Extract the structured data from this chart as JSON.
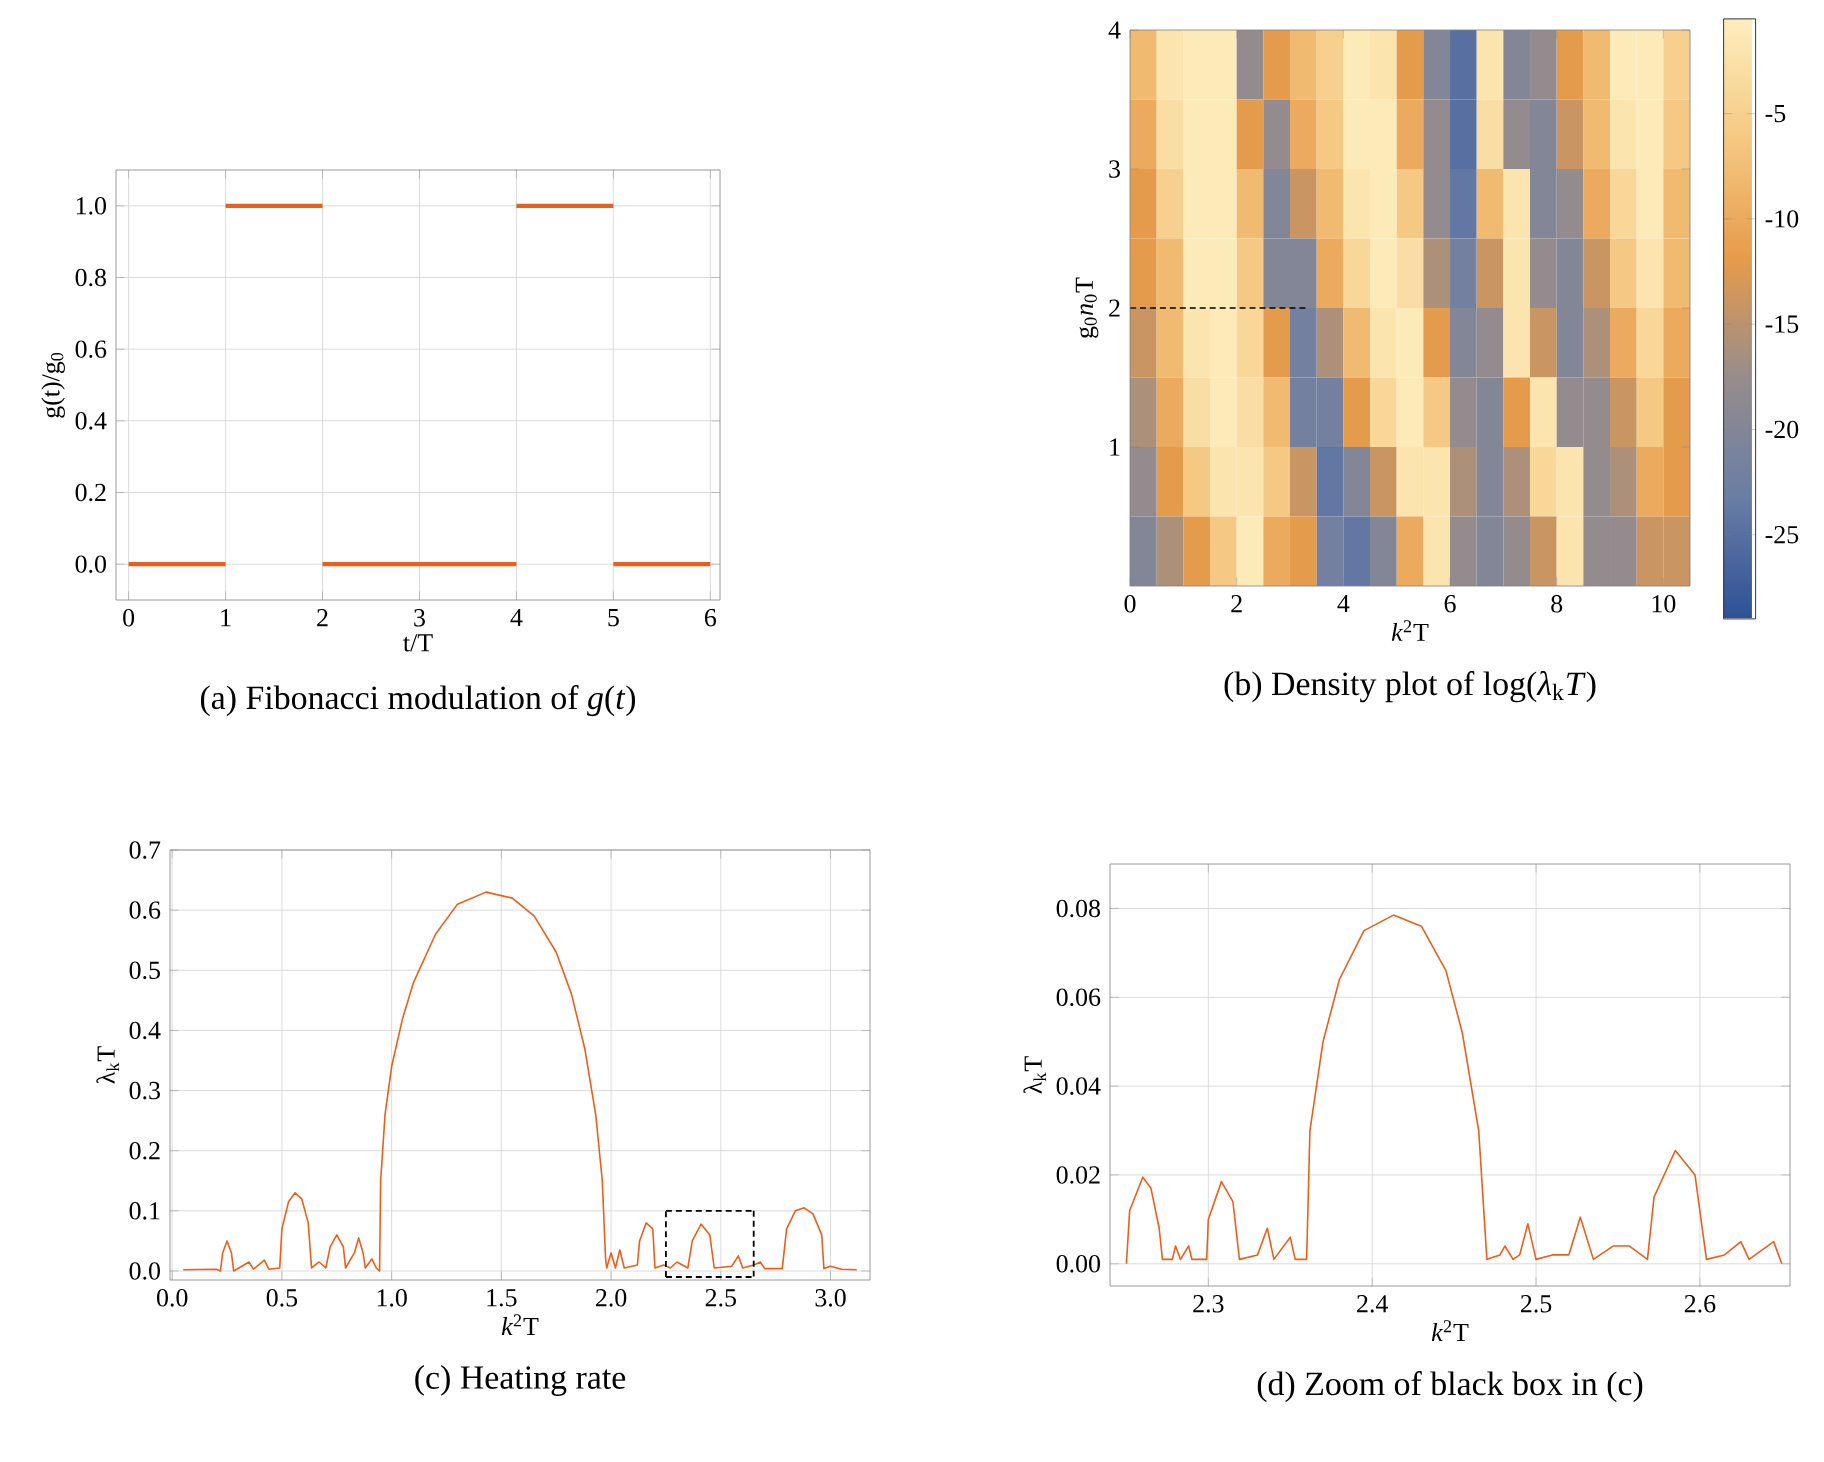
{
  "chart_data": [
    {
      "type": "line",
      "title": "(a) Fibonacci modulation of *g*(*t*)",
      "xlabel": "t/T",
      "ylabel": "g(t)/g$_{0}$",
      "xlim": [
        -0.13,
        6.1
      ],
      "ylim": [
        -0.1,
        1.1
      ],
      "xticks": [
        0,
        1,
        2,
        3,
        4,
        5,
        6
      ],
      "yticks": [
        {
          "value": 0,
          "label": "0.0"
        },
        {
          "value": 0.2,
          "label": "0.2"
        },
        {
          "value": 0.4,
          "label": "0.4"
        },
        {
          "value": 0.6,
          "label": "0.6"
        },
        {
          "value": 0.8,
          "label": "0.8"
        },
        {
          "value": 1,
          "label": "1.0"
        }
      ],
      "grid": true,
      "series": [
        {
          "color": "#e8601c",
          "x": [
            0,
            1
          ],
          "values": [
            0,
            0
          ]
        },
        {
          "color": "#e8601c",
          "x": [
            1,
            2
          ],
          "values": [
            1,
            1
          ]
        },
        {
          "color": "#e8601c",
          "x": [
            2,
            4
          ],
          "values": [
            0,
            0
          ]
        },
        {
          "color": "#e8601c",
          "x": [
            4,
            5
          ],
          "values": [
            1,
            1
          ]
        },
        {
          "color": "#e8601c",
          "x": [
            5,
            6
          ],
          "values": [
            0,
            0
          ]
        }
      ]
    },
    {
      "type": "heatmap",
      "title": "(b) Density plot of log(*λ*$_{k}$*T*)",
      "xlabel": "*k*$^{2}$T",
      "ylabel": "g$_{0}$*n*$_{0}$T",
      "xlim": [
        0,
        10.5
      ],
      "ylim": [
        0,
        4
      ],
      "xticks": [
        0,
        2,
        4,
        6,
        8,
        10
      ],
      "yticks": [
        1,
        2,
        3,
        4
      ],
      "clim": [
        -29,
        -0.5
      ],
      "cticks": [
        -5,
        -10,
        -15,
        -20,
        -25
      ],
      "x": [
        0.25,
        0.75,
        1.25,
        1.75,
        2.25,
        2.75,
        3.25,
        3.75,
        4.25,
        4.75,
        5.25,
        5.75,
        6.25,
        6.75,
        7.25,
        7.75,
        8.25,
        8.75,
        9.25,
        9.75,
        10.25
      ],
      "y": [
        3.75,
        3.25,
        2.75,
        2.25,
        1.75,
        1.25,
        0.75,
        0.25
      ],
      "cells": [
        [
          -8,
          -2,
          -1,
          -1,
          -18,
          -12,
          -8,
          -5,
          -1,
          -2,
          -12,
          -20,
          -25,
          -2,
          -20,
          -18,
          -12,
          -8,
          -1,
          -1,
          -5
        ],
        [
          -10,
          -3,
          -1,
          -1,
          -12,
          -18,
          -10,
          -6,
          -1,
          -1,
          -10,
          -18,
          -25,
          -3,
          -18,
          -20,
          -14,
          -8,
          -2,
          -1,
          -6
        ],
        [
          -12,
          -5,
          -1,
          -1,
          -8,
          -20,
          -14,
          -8,
          -2,
          -1,
          -6,
          -18,
          -24,
          -8,
          -2,
          -20,
          -18,
          -10,
          -4,
          -1,
          -8
        ],
        [
          -12,
          -8,
          -1,
          -1,
          -6,
          -20,
          -20,
          -10,
          -4,
          -1,
          -3,
          -16,
          -22,
          -14,
          -2,
          -18,
          -20,
          -14,
          -6,
          -2,
          -8
        ],
        [
          -14,
          -8,
          -2,
          -1,
          -4,
          -12,
          -22,
          -16,
          -8,
          -2,
          -1,
          -12,
          -20,
          -18,
          -2,
          -14,
          -20,
          -16,
          -10,
          -4,
          -10
        ],
        [
          -16,
          -10,
          -3,
          -1,
          -3,
          -8,
          -22,
          -22,
          -12,
          -4,
          -1,
          -6,
          -18,
          -20,
          -12,
          -2,
          -18,
          -18,
          -14,
          -6,
          -12
        ],
        [
          -18,
          -12,
          -6,
          -2,
          -2,
          -6,
          -14,
          -24,
          -20,
          -14,
          -2,
          -2,
          -16,
          -20,
          -16,
          -4,
          -2,
          -18,
          -16,
          -10,
          -12
        ],
        [
          -20,
          -16,
          -12,
          -6,
          -1,
          -10,
          -12,
          -22,
          -24,
          -20,
          -10,
          -2,
          -18,
          -20,
          -18,
          -14,
          -2,
          -18,
          -18,
          -14,
          -14
        ]
      ],
      "series": [
        {
          "type": "line",
          "color": "#000000",
          "line_style": "dashed",
          "x": [
            0,
            3.3
          ],
          "values": [
            2,
            2
          ]
        }
      ]
    },
    {
      "type": "line",
      "title": "(c) Heating rate",
      "xlabel": "*k*$^{2}$T",
      "ylabel": "λ$_{k}$T",
      "xlim": [
        -0.01,
        3.18
      ],
      "ylim": [
        -0.015,
        0.7
      ],
      "xticks": [
        {
          "value": 0,
          "label": "0.0"
        },
        {
          "value": 0.5,
          "label": "0.5"
        },
        {
          "value": 1,
          "label": "1.0"
        },
        {
          "value": 1.5,
          "label": "1.5"
        },
        {
          "value": 2,
          "label": "2.0"
        },
        {
          "value": 2.5,
          "label": "2.5"
        },
        {
          "value": 3,
          "label": "3.0"
        }
      ],
      "yticks": [
        {
          "value": 0,
          "label": "0.0"
        },
        {
          "value": 0.1,
          "label": "0.1"
        },
        {
          "value": 0.2,
          "label": "0.2"
        },
        {
          "value": 0.3,
          "label": "0.3"
        },
        {
          "value": 0.4,
          "label": "0.4"
        },
        {
          "value": 0.5,
          "label": "0.5"
        },
        {
          "value": 0.6,
          "label": "0.6"
        },
        {
          "value": 0.7,
          "label": "0.7"
        }
      ],
      "grid": true,
      "series": [
        {
          "color": "#e8601c",
          "x": [
            0.05,
            0.2,
            0.22,
            0.23,
            0.25,
            0.27,
            0.28,
            0.35,
            0.37,
            0.42,
            0.44,
            0.49,
            0.5,
            0.53,
            0.56,
            0.59,
            0.62,
            0.635,
            0.67,
            0.7,
            0.72,
            0.75,
            0.78,
            0.79,
            0.83,
            0.85,
            0.87,
            0.88,
            0.91,
            0.93,
            0.945,
            0.95,
            0.97,
            1.0,
            1.05,
            1.1,
            1.2,
            1.3,
            1.43,
            1.55,
            1.65,
            1.75,
            1.82,
            1.88,
            1.93,
            1.96,
            1.975,
            1.98,
            2.0,
            2.02,
            2.04,
            2.06,
            2.12,
            2.13,
            2.16,
            2.19,
            2.2,
            2.24,
            2.27,
            2.3,
            2.35,
            2.37,
            2.41,
            2.45,
            2.47,
            2.55,
            2.58,
            2.6,
            2.65,
            2.68,
            2.7,
            2.78,
            2.8,
            2.84,
            2.88,
            2.92,
            2.96,
            2.97,
            3.0,
            3.05,
            3.12
          ],
          "values": [
            0.002,
            0.003,
            0,
            0.03,
            0.05,
            0.03,
            0,
            0.015,
            0.003,
            0.018,
            0.003,
            0.005,
            0.07,
            0.115,
            0.13,
            0.12,
            0.08,
            0.005,
            0.015,
            0.005,
            0.04,
            0.06,
            0.04,
            0.005,
            0.03,
            0.055,
            0.03,
            0.005,
            0.02,
            0.005,
            0,
            0.15,
            0.26,
            0.34,
            0.42,
            0.48,
            0.56,
            0.61,
            0.63,
            0.62,
            0.59,
            0.53,
            0.46,
            0.37,
            0.26,
            0.15,
            0.02,
            0.005,
            0.03,
            0.005,
            0.035,
            0.005,
            0.01,
            0.05,
            0.08,
            0.07,
            0.005,
            0.01,
            0.005,
            0.015,
            0.005,
            0.05,
            0.078,
            0.06,
            0.005,
            0.008,
            0.025,
            0.005,
            0.01,
            0.015,
            0.004,
            0.004,
            0.07,
            0.1,
            0.105,
            0.095,
            0.06,
            0.004,
            0.008,
            0.003,
            0.002
          ]
        },
        {
          "type": "line",
          "color": "#000000",
          "line_style": "dashed",
          "x": [
            2.25,
            2.25
          ],
          "values": [
            -0.01,
            0.1
          ]
        },
        {
          "type": "line",
          "color": "#000000",
          "line_style": "dashed",
          "x": [
            2.25,
            2.65
          ],
          "values": [
            0.1,
            0.1
          ]
        },
        {
          "type": "line",
          "color": "#000000",
          "line_style": "dashed",
          "x": [
            2.65,
            2.65
          ],
          "values": [
            0.1,
            -0.01
          ]
        },
        {
          "type": "line",
          "color": "#000000",
          "line_style": "dashed",
          "x": [
            2.25,
            2.65
          ],
          "values": [
            -0.01,
            -0.01
          ]
        }
      ]
    },
    {
      "type": "line",
      "title": "(d) Zoom of black box in (c)",
      "xlabel": "*k*$^{2}$T",
      "ylabel": "λ$_{k}$T",
      "xlim": [
        2.24,
        2.655
      ],
      "ylim": [
        -0.005,
        0.09
      ],
      "xticks": [
        2.3,
        2.4,
        2.5,
        2.6
      ],
      "yticks": [
        {
          "value": 0,
          "label": "0.00"
        },
        {
          "value": 0.02,
          "label": "0.02"
        },
        {
          "value": 0.04,
          "label": "0.04"
        },
        {
          "value": 0.06,
          "label": "0.06"
        },
        {
          "value": 0.08,
          "label": "0.08"
        }
      ],
      "grid": true,
      "series": [
        {
          "color": "#e8601c",
          "x": [
            2.25,
            2.252,
            2.26,
            2.265,
            2.27,
            2.272,
            2.278,
            2.28,
            2.283,
            2.288,
            2.29,
            2.299,
            2.3,
            2.308,
            2.315,
            2.319,
            2.33,
            2.336,
            2.34,
            2.35,
            2.353,
            2.36,
            2.362,
            2.37,
            2.38,
            2.395,
            2.413,
            2.43,
            2.445,
            2.455,
            2.465,
            2.47,
            2.478,
            2.481,
            2.486,
            2.49,
            2.495,
            2.5,
            2.51,
            2.52,
            2.527,
            2.535,
            2.547,
            2.557,
            2.568,
            2.572,
            2.585,
            2.597,
            2.604,
            2.615,
            2.625,
            2.63,
            2.645,
            2.65
          ],
          "values": [
            0,
            0.012,
            0.0195,
            0.017,
            0.008,
            0.001,
            0.001,
            0.004,
            0.001,
            0.004,
            0.001,
            0.001,
            0.01,
            0.0185,
            0.014,
            0.001,
            0.002,
            0.008,
            0.001,
            0.006,
            0.001,
            0.001,
            0.03,
            0.05,
            0.064,
            0.075,
            0.0785,
            0.076,
            0.066,
            0.052,
            0.03,
            0.001,
            0.002,
            0.004,
            0.001,
            0.002,
            0.009,
            0.001,
            0.002,
            0.002,
            0.0105,
            0.001,
            0.004,
            0.004,
            0.001,
            0.015,
            0.0255,
            0.02,
            0.001,
            0.002,
            0.005,
            0.001,
            0.005,
            0
          ]
        }
      ]
    }
  ]
}
